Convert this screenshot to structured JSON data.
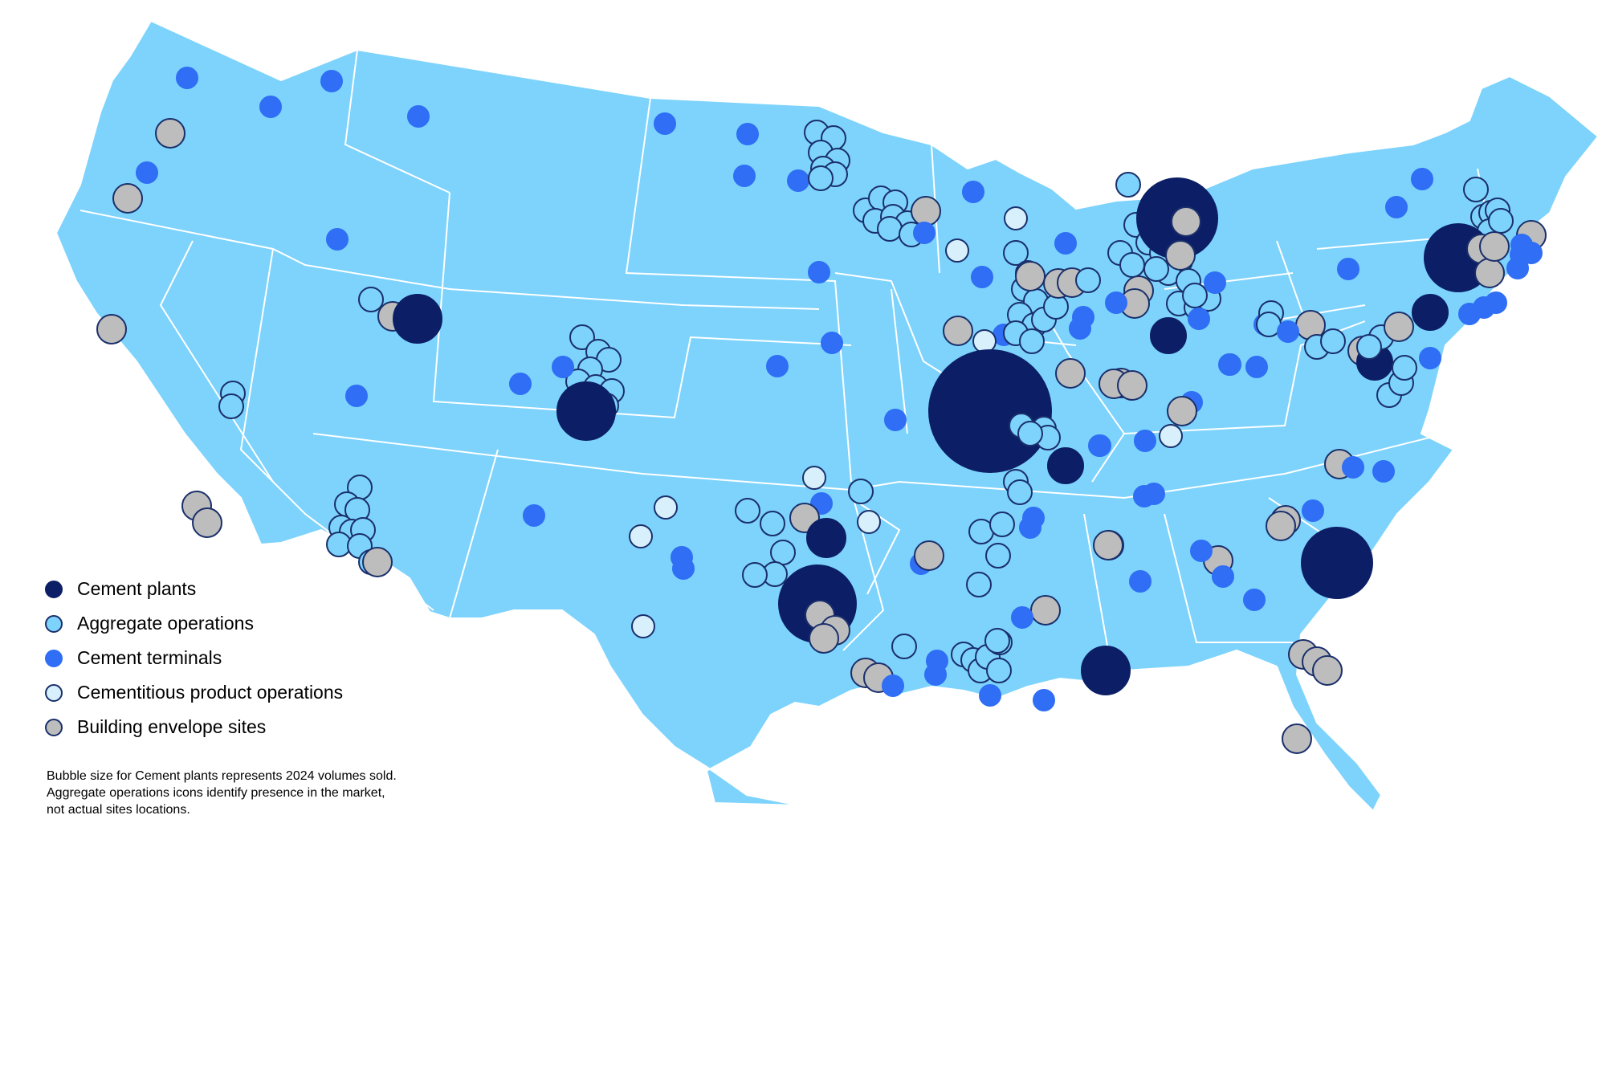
{
  "colors": {
    "land": "#7dd3fc",
    "border": "#ffffff",
    "cement_plant": "#0c1f66",
    "aggregate": "#7dd3fc",
    "terminal": "#2f6ef5",
    "cementitious": "#d7f0fc",
    "envelope": "#bdbdbd",
    "marker_outline": "#1a2f6b"
  },
  "legend": [
    {
      "key": "cement_plant",
      "label": "Cement plants",
      "icon": "cement-plant-dot-icon"
    },
    {
      "key": "aggregate",
      "label": "Aggregate operations",
      "icon": "aggregate-dot-icon"
    },
    {
      "key": "terminal",
      "label": "Cement terminals",
      "icon": "terminal-dot-icon"
    },
    {
      "key": "cementitious",
      "label": "Cementitious product operations",
      "icon": "cementitious-dot-icon"
    },
    {
      "key": "envelope",
      "label": "Building envelope sites",
      "icon": "envelope-dot-icon"
    }
  ],
  "note": [
    "Bubble size for Cement plants represents 2024 volumes sold.",
    "Aggregate operations icons identify presence in the market,",
    "not actual sites locations."
  ]
}
